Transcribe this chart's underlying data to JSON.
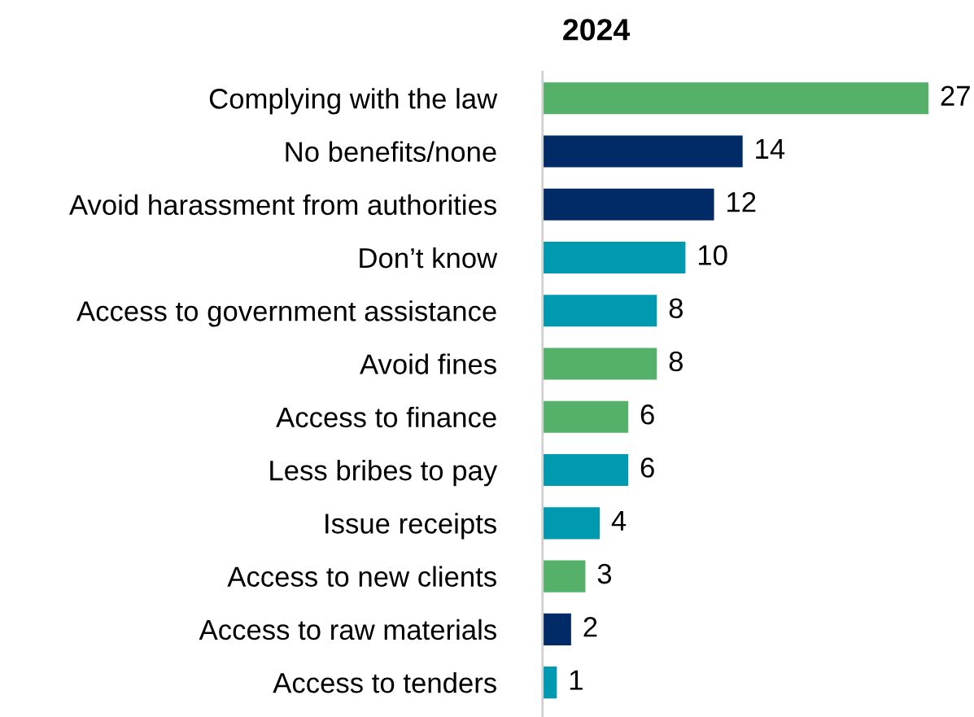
{
  "chart_data": {
    "type": "bar",
    "orientation": "horizontal",
    "title": "2024",
    "categories": [
      "Complying with the law",
      "No benefits/none",
      "Avoid harassment from authorities",
      "Don’t know",
      "Access to government assistance",
      "Avoid fines",
      "Access to finance",
      "Less bribes to pay",
      "Issue receipts",
      "Access to new clients",
      "Access to raw materials",
      "Access to tenders"
    ],
    "values": [
      27,
      14,
      12,
      10,
      8,
      8,
      6,
      6,
      4,
      3,
      2,
      1
    ],
    "colors": [
      "#55b16a",
      "#002b66",
      "#002b66",
      "#009ab0",
      "#009ab0",
      "#55b16a",
      "#55b16a",
      "#009ab0",
      "#009ab0",
      "#55b16a",
      "#002b66",
      "#009ab0"
    ],
    "data_labels": true,
    "grid": false,
    "legend": false
  }
}
